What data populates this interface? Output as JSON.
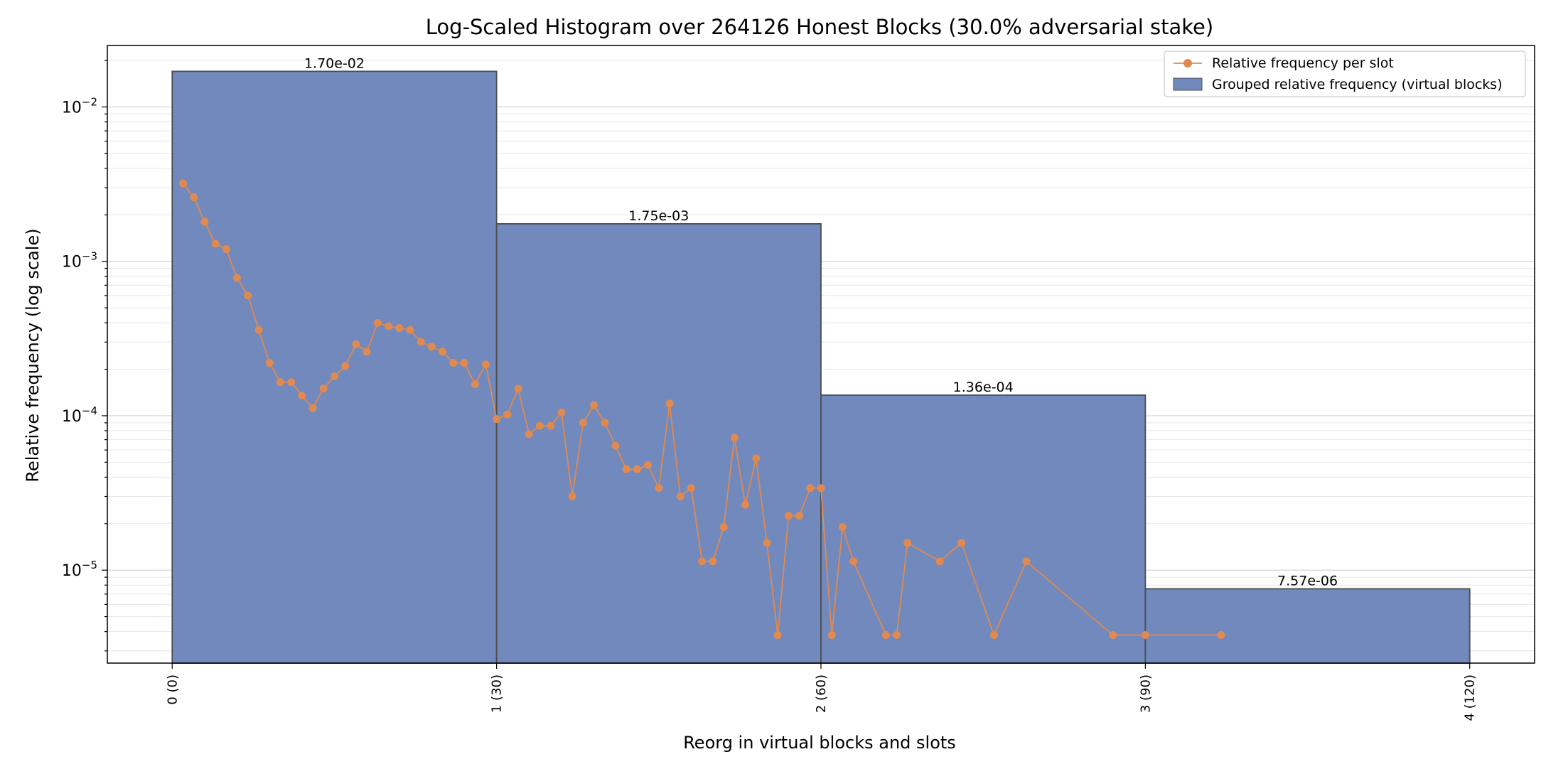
{
  "chart_data": {
    "type": "bar",
    "title": "Log-Scaled Histogram over 264126 Honest Blocks (30.0% adversarial stake)",
    "xlabel": "Reorg in virtual blocks and slots",
    "ylabel": "Relative frequency (log scale)",
    "yscale": "log",
    "ylim": [
      2.5e-06,
      0.025
    ],
    "xlim": [
      -6,
      126
    ],
    "grid": "horizontal",
    "legend_position": "top-right",
    "x_ticks": [
      {
        "value": 0,
        "label": "0 (0)"
      },
      {
        "value": 30,
        "label": "1 (30)"
      },
      {
        "value": 60,
        "label": "2 (60)"
      },
      {
        "value": 90,
        "label": "3 (90)"
      },
      {
        "value": 120,
        "label": "4 (120)"
      }
    ],
    "y_ticks": [
      {
        "value": 1e-05,
        "base": "10",
        "exp": "−5"
      },
      {
        "value": 0.0001,
        "base": "10",
        "exp": "−4"
      },
      {
        "value": 0.001,
        "base": "10",
        "exp": "−3"
      },
      {
        "value": 0.01,
        "base": "10",
        "exp": "−2"
      }
    ],
    "bars": {
      "name": "Grouped relative frequency (virtual blocks)",
      "color": "#7189bd",
      "edge_color": "#4d4d4d",
      "items": [
        {
          "x0": 0,
          "x1": 30,
          "value": 0.017,
          "label": "1.70e-02"
        },
        {
          "x0": 30,
          "x1": 60,
          "value": 0.00175,
          "label": "1.75e-03"
        },
        {
          "x0": 60,
          "x1": 90,
          "value": 0.000136,
          "label": "1.36e-04"
        },
        {
          "x0": 90,
          "x1": 120,
          "value": 7.57e-06,
          "label": "7.57e-06"
        }
      ]
    },
    "line": {
      "name": "Relative frequency per slot",
      "color": "#e08a50",
      "points": [
        [
          1,
          0.0032
        ],
        [
          2,
          0.0026
        ],
        [
          3,
          0.0018
        ],
        [
          4,
          0.0013
        ],
        [
          5,
          0.0012
        ],
        [
          6,
          0.00078
        ],
        [
          7,
          0.0006
        ],
        [
          8,
          0.00036
        ],
        [
          9,
          0.00022
        ],
        [
          10,
          0.000165
        ],
        [
          11,
          0.000165
        ],
        [
          12,
          0.000135
        ],
        [
          13,
          0.000112
        ],
        [
          14,
          0.00015
        ],
        [
          15,
          0.00018
        ],
        [
          16,
          0.00021
        ],
        [
          17,
          0.00029
        ],
        [
          18,
          0.00026
        ],
        [
          19,
          0.0004
        ],
        [
          20,
          0.00038
        ],
        [
          21,
          0.00037
        ],
        [
          22,
          0.00036
        ],
        [
          23,
          0.0003
        ],
        [
          24,
          0.00028
        ],
        [
          25,
          0.00026
        ],
        [
          26,
          0.00022
        ],
        [
          27,
          0.00022
        ],
        [
          28,
          0.00016
        ],
        [
          29,
          0.000215
        ],
        [
          30,
          9.5e-05
        ],
        [
          31,
          0.000102
        ],
        [
          32,
          0.00015
        ],
        [
          33,
          7.6e-05
        ],
        [
          34,
          8.6e-05
        ],
        [
          35,
          8.6e-05
        ],
        [
          36,
          0.000105
        ],
        [
          37,
          3e-05
        ],
        [
          38,
          9e-05
        ],
        [
          39,
          0.000117
        ],
        [
          40,
          9e-05
        ],
        [
          41,
          6.4e-05
        ],
        [
          42,
          4.5e-05
        ],
        [
          43,
          4.5e-05
        ],
        [
          44,
          4.8e-05
        ],
        [
          45,
          3.4e-05
        ],
        [
          46,
          0.00012
        ],
        [
          47,
          3e-05
        ],
        [
          48,
          3.4e-05
        ],
        [
          49,
          1.14e-05
        ],
        [
          50,
          1.14e-05
        ],
        [
          51,
          1.9e-05
        ],
        [
          52,
          7.2e-05
        ],
        [
          53,
          2.65e-05
        ],
        [
          54,
          5.3e-05
        ],
        [
          55,
          1.5e-05
        ],
        [
          56,
          3.8e-06
        ],
        [
          57,
          2.25e-05
        ],
        [
          58,
          2.25e-05
        ],
        [
          59,
          3.4e-05
        ],
        [
          60,
          3.4e-05
        ],
        [
          61,
          3.8e-06
        ],
        [
          62,
          1.9e-05
        ],
        [
          63,
          1.14e-05
        ],
        [
          66,
          3.8e-06
        ],
        [
          67,
          3.8e-06
        ],
        [
          68,
          1.5e-05
        ],
        [
          71,
          1.14e-05
        ],
        [
          73,
          1.5e-05
        ],
        [
          76,
          3.8e-06
        ],
        [
          79,
          1.14e-05
        ],
        [
          87,
          3.8e-06
        ],
        [
          90,
          3.8e-06
        ],
        [
          97,
          3.8e-06
        ]
      ]
    }
  }
}
